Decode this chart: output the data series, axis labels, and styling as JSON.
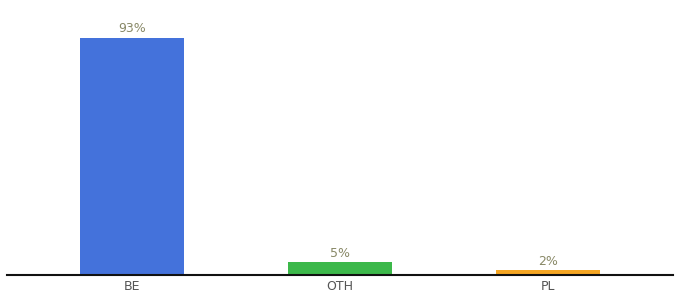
{
  "categories": [
    "BE",
    "OTH",
    "PL"
  ],
  "values": [
    93,
    5,
    2
  ],
  "bar_colors": [
    "#4472db",
    "#3cb84a",
    "#f5a623"
  ],
  "labels": [
    "93%",
    "5%",
    "2%"
  ],
  "ylim": [
    0,
    105
  ],
  "background_color": "#ffffff",
  "label_fontsize": 9,
  "tick_fontsize": 9,
  "label_color": "#888866"
}
